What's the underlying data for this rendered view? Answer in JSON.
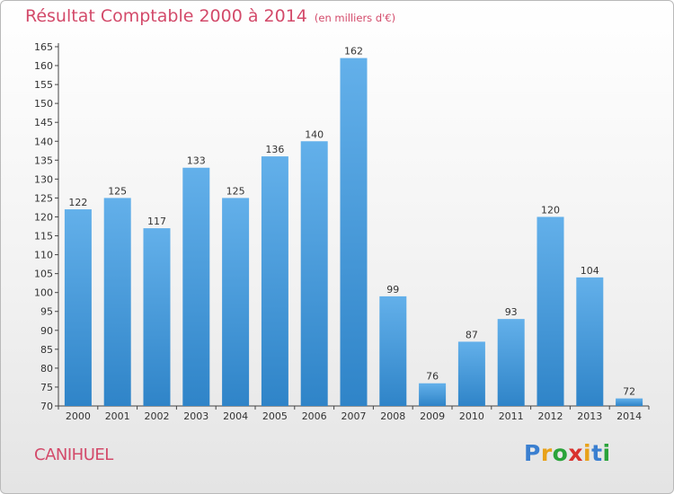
{
  "title": "Résultat Comptable 2000 à 2014",
  "unit_note": "(en milliers d'€)",
  "town": "CANIHUEL",
  "logo": {
    "letters": [
      "P",
      "r",
      "o",
      "x",
      "i",
      "t",
      "i"
    ],
    "colors": [
      "#3a7fd0",
      "#e8a21a",
      "#2aa33a",
      "#d9322e",
      "#e8a21a",
      "#3a7fd0",
      "#2aa33a"
    ]
  },
  "colors": {
    "bar_light": "#63b0ea",
    "bar_dark": "#2f84c8",
    "accent": "#d34a6a"
  },
  "chart_data": {
    "type": "bar",
    "title": "Résultat Comptable 2000 à 2014",
    "subtitle": "(en milliers d'€)",
    "xlabel": "",
    "ylabel": "",
    "categories": [
      "2000",
      "2001",
      "2002",
      "2003",
      "2004",
      "2005",
      "2006",
      "2007",
      "2008",
      "2009",
      "2010",
      "2011",
      "2012",
      "2013",
      "2014"
    ],
    "values": [
      122,
      125,
      117,
      133,
      125,
      136,
      140,
      162,
      99,
      76,
      87,
      93,
      120,
      104,
      72
    ],
    "ylim": [
      70,
      165
    ],
    "yticks": [
      70,
      75,
      80,
      85,
      90,
      95,
      100,
      105,
      110,
      115,
      120,
      125,
      130,
      135,
      140,
      145,
      150,
      155,
      160,
      165
    ],
    "grid": false,
    "legend": "none"
  }
}
